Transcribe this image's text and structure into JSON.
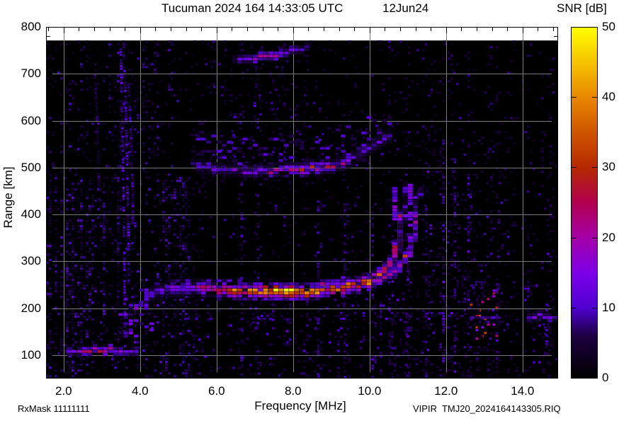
{
  "chart_data": {
    "type": "heatmap",
    "title": "Tucuman 2024 164 14:33:05 UTC",
    "date_label": "12Jun24",
    "xlabel": "Frequency [MHz]",
    "ylabel": "Range [km]",
    "footer_left": "RxMask 11111111",
    "footer_right": "VIPIR  TMJ20_2024164143305.RIQ",
    "colorbar": {
      "label": "SNR [dB]",
      "min": 0,
      "max": 50,
      "tick_values": [
        0,
        10,
        20,
        30,
        40,
        50
      ],
      "tick_labels": [
        "0",
        "10",
        "20",
        "30",
        "40",
        "50"
      ]
    },
    "x_axis": {
      "lim": [
        1.54,
        14.93
      ],
      "tick_values": [
        2,
        4,
        6,
        8,
        10,
        12,
        14
      ],
      "tick_labels": [
        "2.0",
        "4.0",
        "6.0",
        "8.0",
        "10.0",
        "12.0",
        "14.0"
      ],
      "minor_step": 0.4
    },
    "y_axis": {
      "lim": [
        50,
        800
      ],
      "tick_values": [
        100,
        200,
        300,
        400,
        500,
        600,
        700,
        800
      ],
      "tick_labels": [
        "100",
        "200",
        "300",
        "400",
        "500",
        "600",
        "700",
        "800"
      ],
      "minor_step": 20
    },
    "grid": true,
    "grid_color": "#787878",
    "background_color": "#000000",
    "data_top_km": 771,
    "palette": [
      [
        0,
        "#000000"
      ],
      [
        6,
        "#1c0040"
      ],
      [
        10,
        "#4f00d0"
      ],
      [
        15,
        "#7d00e8"
      ],
      [
        20,
        "#a400a8"
      ],
      [
        25,
        "#b20050"
      ],
      [
        30,
        "#b42800"
      ],
      [
        35,
        "#cf5500"
      ],
      [
        40,
        "#e88700"
      ],
      [
        45,
        "#f6c300"
      ],
      [
        50,
        "#ffff00"
      ]
    ],
    "traces": [
      {
        "name": "E-layer echo ~110 km",
        "halo": 1,
        "th": 1,
        "points": [
          [
            2.06,
            107,
            12
          ],
          [
            2.2,
            111,
            15
          ],
          [
            2.35,
            113,
            17
          ],
          [
            2.55,
            114,
            20
          ],
          [
            2.75,
            115,
            23
          ],
          [
            2.95,
            114,
            21
          ],
          [
            3.15,
            113,
            18
          ],
          [
            3.35,
            112,
            16
          ],
          [
            3.55,
            111,
            15
          ],
          [
            3.72,
            112,
            14
          ],
          [
            3.88,
            114,
            11
          ]
        ]
      },
      {
        "name": "F2 O-mode main trace",
        "halo": 2,
        "th": 2,
        "fuzz": {
          "up": 18,
          "n": 2,
          "snr": 9
        },
        "points": [
          [
            4.05,
            226,
            10
          ],
          [
            4.2,
            234,
            12
          ],
          [
            4.4,
            242,
            13
          ],
          [
            4.65,
            248,
            14
          ],
          [
            4.9,
            251,
            15
          ],
          [
            5.15,
            250,
            16
          ],
          [
            5.4,
            248,
            18
          ],
          [
            5.65,
            246,
            22
          ],
          [
            5.9,
            245,
            27
          ],
          [
            6.15,
            244,
            32
          ],
          [
            6.45,
            243,
            35
          ],
          [
            6.75,
            242,
            37
          ],
          [
            7.1,
            242,
            39
          ],
          [
            7.45,
            242,
            41
          ],
          [
            7.8,
            242,
            43
          ],
          [
            8.15,
            243,
            42
          ],
          [
            8.5,
            244,
            41
          ],
          [
            8.85,
            246,
            39
          ],
          [
            9.15,
            249,
            37
          ],
          [
            9.45,
            253,
            36
          ],
          [
            9.75,
            259,
            34
          ],
          [
            10.0,
            267,
            33
          ],
          [
            10.2,
            277,
            31
          ],
          [
            10.38,
            290,
            30
          ],
          [
            10.52,
            306,
            29
          ],
          [
            10.63,
            326,
            27
          ],
          [
            10.72,
            352,
            25
          ],
          [
            10.78,
            384,
            20
          ],
          [
            10.82,
            420,
            14
          ],
          [
            10.85,
            455,
            9
          ]
        ]
      },
      {
        "name": "F2 X-mode cusp branch",
        "halo": 1,
        "th": 1,
        "points": [
          [
            10.08,
            259,
            16
          ],
          [
            10.3,
            266,
            20
          ],
          [
            10.5,
            275,
            23
          ],
          [
            10.68,
            287,
            25
          ],
          [
            10.83,
            302,
            25
          ],
          [
            10.95,
            322,
            23
          ],
          [
            11.05,
            347,
            21
          ],
          [
            11.13,
            378,
            17
          ],
          [
            11.18,
            412,
            13
          ],
          [
            11.21,
            448,
            9
          ]
        ]
      },
      {
        "name": "Second hop 2F ~500 km",
        "halo": 2,
        "th": 1,
        "fuzz": {
          "up": 72,
          "n": 5,
          "snr": 8
        },
        "points": [
          [
            5.35,
            513,
            8
          ],
          [
            5.55,
            507,
            10
          ],
          [
            5.8,
            502,
            11
          ],
          [
            6.1,
            498,
            12
          ],
          [
            6.45,
            495,
            13
          ],
          [
            6.8,
            493,
            14
          ],
          [
            7.15,
            493,
            16
          ],
          [
            7.5,
            494,
            19
          ],
          [
            7.8,
            495,
            23
          ],
          [
            8.05,
            497,
            26
          ],
          [
            8.3,
            498,
            27
          ],
          [
            8.55,
            500,
            25
          ],
          [
            8.8,
            503,
            21
          ],
          [
            9.05,
            508,
            18
          ],
          [
            9.3,
            515,
            16
          ],
          [
            9.55,
            524,
            14
          ],
          [
            9.8,
            536,
            12
          ],
          [
            10.05,
            549,
            11
          ],
          [
            10.3,
            562,
            9
          ],
          [
            10.55,
            577,
            8
          ]
        ]
      },
      {
        "name": "Third hop 3F ~740 km",
        "halo": 1,
        "th": 1,
        "points": [
          [
            6.35,
            730,
            8
          ],
          [
            6.55,
            733,
            11
          ],
          [
            6.8,
            736,
            14
          ],
          [
            7.05,
            739,
            17
          ],
          [
            7.3,
            742,
            20
          ],
          [
            7.55,
            746,
            18
          ],
          [
            7.8,
            750,
            15
          ],
          [
            8.05,
            754,
            12
          ],
          [
            8.3,
            758,
            9
          ]
        ]
      },
      {
        "name": "Weak echo ~183 km 12.6-13.3 MHz",
        "halo": 0,
        "th": 1,
        "points": [
          [
            12.58,
            183,
            7
          ],
          [
            12.9,
            184,
            9
          ],
          [
            13.32,
            183,
            7
          ]
        ]
      },
      {
        "name": "Echo ~186 km 14.1-14.9 MHz",
        "halo": 1,
        "th": 1,
        "points": [
          [
            14.15,
            186,
            10
          ],
          [
            14.45,
            187,
            13
          ],
          [
            14.7,
            186,
            14
          ],
          [
            14.93,
            186,
            13
          ]
        ]
      }
    ],
    "spikes": [
      {
        "f": 10.55,
        "km": [
          388,
          466
        ],
        "snr": 13
      },
      {
        "f": 10.97,
        "km": [
          372,
          462
        ],
        "snr": 12
      }
    ],
    "blobs": [
      {
        "f": [
          3.38,
          4.32
        ],
        "km": [
          140,
          240
        ],
        "p": 0.16,
        "snr": [
          5,
          13
        ]
      },
      {
        "f": [
          3.9,
          4.25
        ],
        "km": [
          200,
          240
        ],
        "p": 0.45,
        "snr": [
          7,
          14
        ]
      },
      {
        "f": [
          3.5,
          3.8
        ],
        "km": [
          150,
          190
        ],
        "p": 0.4,
        "snr": [
          6,
          13
        ]
      }
    ],
    "noise": {
      "zones": [
        {
          "f": [
            1.54,
            5.3
          ],
          "km": [
            50,
            480
          ],
          "p": 0.34,
          "snr": [
            2,
            9
          ]
        },
        {
          "f": [
            1.54,
            4.8
          ],
          "km": [
            480,
            771
          ],
          "p": 0.22,
          "snr": [
            2,
            8
          ]
        },
        {
          "f": [
            4.8,
            8.6
          ],
          "km": [
            640,
            771
          ],
          "p": 0.1,
          "snr": [
            2,
            7
          ]
        },
        {
          "f": [
            5.3,
            14.93
          ],
          "km": [
            50,
            771
          ],
          "p": 0.09,
          "snr": [
            2,
            7
          ]
        },
        {
          "f": [
            5.3,
            11.2
          ],
          "km": [
            50,
            220
          ],
          "p": 0.1,
          "snr": [
            3,
            9
          ]
        },
        {
          "f": [
            11.2,
            13.6
          ],
          "km": [
            50,
            560
          ],
          "p": 0.08,
          "snr": [
            3,
            9
          ]
        },
        {
          "f": [
            6.3,
            10.4
          ],
          "km": [
            500,
            640
          ],
          "p": 0.1,
          "snr": [
            3,
            9
          ]
        },
        {
          "f": [
            13.6,
            14.93
          ],
          "km": [
            50,
            250
          ],
          "p": 0.12,
          "snr": [
            3,
            9
          ]
        },
        {
          "f": [
            5.0,
            12.5
          ],
          "km": [
            178,
            192
          ],
          "p": 0.18,
          "snr": [
            4,
            10
          ]
        },
        {
          "f": [
            12.4,
            13.4
          ],
          "km": [
            130,
            240
          ],
          "p": 0.1,
          "snr": [
            20,
            27
          ]
        }
      ],
      "columns": [
        {
          "f": 5.6,
          "km": [
            430,
            620
          ],
          "p": 0.3,
          "snr": [
            3,
            8
          ]
        },
        {
          "f": 6.1,
          "km": [
            440,
            600
          ],
          "p": 0.25,
          "snr": [
            3,
            8
          ]
        },
        {
          "f": 6.62,
          "km": [
            50,
            520
          ],
          "p": 0.3,
          "snr": [
            3,
            9
          ]
        },
        {
          "f": 7.05,
          "km": [
            50,
            720
          ],
          "p": 0.3,
          "snr": [
            3,
            9
          ]
        },
        {
          "f": 8.62,
          "km": [
            50,
            430
          ],
          "p": 0.35,
          "snr": [
            3,
            10
          ]
        },
        {
          "f": 9.32,
          "km": [
            50,
            460
          ],
          "p": 0.35,
          "snr": [
            3,
            10
          ]
        },
        {
          "f": 10.05,
          "km": [
            50,
            430
          ],
          "p": 0.4,
          "snr": [
            4,
            10
          ]
        },
        {
          "f": 10.57,
          "km": [
            50,
            380
          ],
          "p": 0.35,
          "snr": [
            4,
            10
          ]
        },
        {
          "f": 10.97,
          "km": [
            50,
            360
          ],
          "p": 0.4,
          "snr": [
            4,
            11
          ]
        },
        {
          "f": 11.45,
          "km": [
            50,
            420
          ],
          "p": 0.35,
          "snr": [
            3,
            9
          ]
        },
        {
          "f": 11.9,
          "km": [
            50,
            560
          ],
          "p": 0.45,
          "snr": [
            4,
            11
          ]
        },
        {
          "f": 12.2,
          "km": [
            50,
            520
          ],
          "p": 0.4,
          "snr": [
            4,
            10
          ]
        },
        {
          "f": 12.55,
          "km": [
            50,
            480
          ],
          "p": 0.4,
          "snr": [
            4,
            10
          ]
        },
        {
          "f": 12.9,
          "km": [
            60,
            300
          ],
          "p": 0.3,
          "snr": [
            3,
            9
          ]
        },
        {
          "f": 13.3,
          "km": [
            50,
            260
          ],
          "p": 0.3,
          "snr": [
            3,
            9
          ]
        },
        {
          "f": 14.6,
          "km": [
            50,
            210
          ],
          "p": 0.3,
          "snr": [
            4,
            10
          ]
        }
      ],
      "streaks": [
        {
          "f": 3.57,
          "km": [
            120,
            755
          ],
          "snr": [
            5,
            12
          ]
        },
        {
          "f": 3.67,
          "km": [
            250,
            720
          ],
          "snr": [
            5,
            11
          ]
        },
        {
          "f": 3.78,
          "km": [
            380,
            680
          ],
          "snr": [
            4,
            9
          ]
        },
        {
          "f": 2.9,
          "km": [
            420,
            700
          ],
          "snr": [
            3,
            7
          ]
        }
      ]
    }
  }
}
